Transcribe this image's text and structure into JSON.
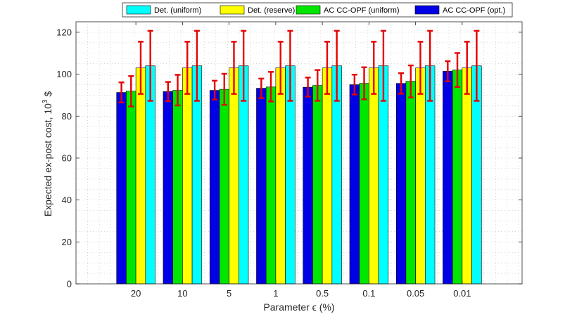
{
  "chart_data": {
    "type": "bar",
    "title": "",
    "xlabel": "Parameter ϵ (%)",
    "ylabel_main": "Expected ex-post cost, 10",
    "ylabel_sup": "3",
    "ylabel_unit": " $",
    "ylim": [
      0,
      125
    ],
    "yticks": [
      0,
      20,
      40,
      60,
      80,
      100,
      120
    ],
    "grid": "minor dotted",
    "legend_position": "top",
    "categories": [
      "20",
      "10",
      "5",
      "1",
      "0.5",
      "0.1",
      "0.05",
      "0.01"
    ],
    "series": [
      {
        "name": "AC CC-OPF (opt.)",
        "color": "#0000e6",
        "values": [
          91.3,
          91.7,
          92.3,
          93.3,
          93.8,
          95.0,
          95.6,
          101.4
        ],
        "err_low": [
          86.5,
          87.1,
          87.9,
          88.6,
          89.3,
          90.3,
          90.7,
          96.6
        ],
        "err_high": [
          96.1,
          96.3,
          96.9,
          97.9,
          98.4,
          99.8,
          100.5,
          106.2
        ]
      },
      {
        "name": "AC CC-OPF (uniform)",
        "color": "#00e600",
        "values": [
          91.9,
          92.3,
          92.8,
          93.9,
          94.6,
          95.6,
          96.6,
          102.0
        ],
        "err_low": [
          84.6,
          85.1,
          85.4,
          87.0,
          87.3,
          88.0,
          88.9,
          93.9
        ],
        "err_high": [
          99.1,
          99.7,
          100.2,
          101.1,
          102.0,
          103.3,
          104.2,
          110.1
        ]
      },
      {
        "name": "Det. (reserve)",
        "color": "#ffff00",
        "values": [
          103.0,
          103.0,
          103.0,
          103.0,
          103.0,
          103.0,
          103.0,
          103.0
        ],
        "err_low": [
          90.6,
          90.6,
          90.6,
          90.6,
          90.6,
          90.6,
          90.6,
          90.6
        ],
        "err_high": [
          115.5,
          115.5,
          115.5,
          115.5,
          115.5,
          115.5,
          115.5,
          115.5
        ]
      },
      {
        "name": "Det. (uniform)",
        "color": "#00ffff",
        "values": [
          104.0,
          104.0,
          104.0,
          104.0,
          104.0,
          104.0,
          104.0,
          104.0
        ],
        "err_low": [
          87.3,
          87.3,
          87.3,
          87.3,
          87.3,
          87.3,
          87.3,
          87.3
        ],
        "err_high": [
          120.7,
          120.7,
          120.7,
          120.7,
          120.7,
          120.7,
          120.7,
          120.7
        ]
      }
    ],
    "legend_order": [
      "Det. (uniform)",
      "Det. (reserve)",
      "AC CC-OPF (uniform)",
      "AC CC-OPF (opt.)"
    ],
    "legend_colors": [
      "#00ffff",
      "#ffff00",
      "#00e600",
      "#0000e6"
    ],
    "error_bar_color": "#e60000"
  }
}
